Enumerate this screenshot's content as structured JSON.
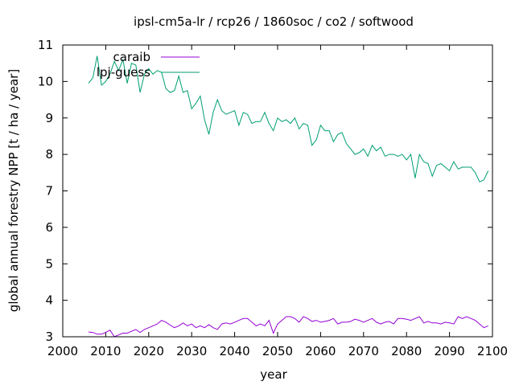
{
  "chart_data": {
    "type": "line",
    "title": "ipsl-cm5a-lr / rcp26 / 1860soc / co2 / softwood",
    "xlabel": "year",
    "ylabel": "global annual forestry NPP [t / ha / year]",
    "xlim": [
      2000,
      2100
    ],
    "ylim": [
      3,
      11
    ],
    "xticks": [
      2000,
      2010,
      2020,
      2030,
      2040,
      2050,
      2060,
      2070,
      2080,
      2090,
      2100
    ],
    "yticks": [
      3,
      4,
      5,
      6,
      7,
      8,
      9,
      10,
      11
    ],
    "legend_position": "top-left",
    "grid": false,
    "x_start": 2006,
    "series": [
      {
        "name": "caraib",
        "color": "#9400d3",
        "values": [
          3.13,
          3.12,
          3.07,
          3.07,
          3.12,
          3.18,
          3.0,
          3.05,
          3.1,
          3.1,
          3.15,
          3.2,
          3.12,
          3.2,
          3.25,
          3.3,
          3.35,
          3.45,
          3.4,
          3.32,
          3.25,
          3.3,
          3.38,
          3.3,
          3.35,
          3.25,
          3.3,
          3.25,
          3.33,
          3.25,
          3.2,
          3.35,
          3.38,
          3.35,
          3.4,
          3.45,
          3.5,
          3.5,
          3.4,
          3.3,
          3.35,
          3.3,
          3.45,
          3.1,
          3.35,
          3.45,
          3.55,
          3.55,
          3.5,
          3.4,
          3.55,
          3.5,
          3.42,
          3.45,
          3.4,
          3.42,
          3.45,
          3.5,
          3.35,
          3.4,
          3.4,
          3.42,
          3.48,
          3.45,
          3.4,
          3.45,
          3.5,
          3.4,
          3.35,
          3.4,
          3.42,
          3.35,
          3.5,
          3.5,
          3.48,
          3.45,
          3.5,
          3.55,
          3.38,
          3.42,
          3.38,
          3.38,
          3.35,
          3.4,
          3.38,
          3.35,
          3.55,
          3.5,
          3.55,
          3.5,
          3.45,
          3.35,
          3.25,
          3.3
        ]
      },
      {
        "name": "lpj-guess",
        "color": "#009e73",
        "values": [
          9.95,
          10.1,
          10.7,
          9.9,
          10.0,
          10.2,
          10.55,
          10.3,
          10.6,
          9.95,
          10.5,
          10.45,
          9.7,
          10.2,
          10.35,
          10.2,
          10.3,
          10.25,
          9.8,
          9.7,
          9.75,
          10.15,
          9.7,
          9.75,
          9.25,
          9.4,
          9.6,
          8.95,
          8.55,
          9.15,
          9.5,
          9.2,
          9.1,
          9.15,
          9.2,
          8.8,
          9.15,
          9.1,
          8.85,
          8.9,
          8.9,
          9.15,
          8.85,
          8.65,
          9.0,
          8.9,
          8.95,
          8.85,
          9.0,
          8.7,
          8.85,
          8.8,
          8.25,
          8.4,
          8.8,
          8.65,
          8.65,
          8.35,
          8.55,
          8.6,
          8.3,
          8.15,
          8.0,
          8.05,
          8.15,
          7.95,
          8.25,
          8.1,
          8.2,
          7.95,
          8.0,
          8.0,
          7.95,
          8.0,
          7.85,
          8.0,
          7.35,
          8.0,
          7.8,
          7.75,
          7.4,
          7.7,
          7.75,
          7.65,
          7.55,
          7.8,
          7.6,
          7.65,
          7.65,
          7.65,
          7.5,
          7.25,
          7.3,
          7.55
        ]
      }
    ]
  }
}
